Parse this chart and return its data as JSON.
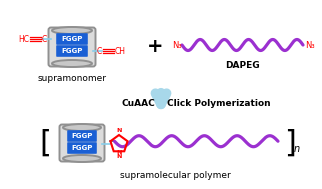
{
  "bg_color": "#ffffff",
  "blue_box_color": "#1a5fd4",
  "fggp_text_color": "#ffffff",
  "fggp_text": "FGGP",
  "red_color": "#ff0000",
  "purple_color": "#9b30d0",
  "gray_color": "#909090",
  "light_blue_color": "#87ceeb",
  "arrow_color": "#a8d8ea",
  "supramonomer_label": "supramonomer",
  "dapeg_label": "DAPEG",
  "polymer_label": "supramolecular polymer",
  "arrow_label_left": "CuAAC",
  "arrow_label_right": "Click Polymerization"
}
